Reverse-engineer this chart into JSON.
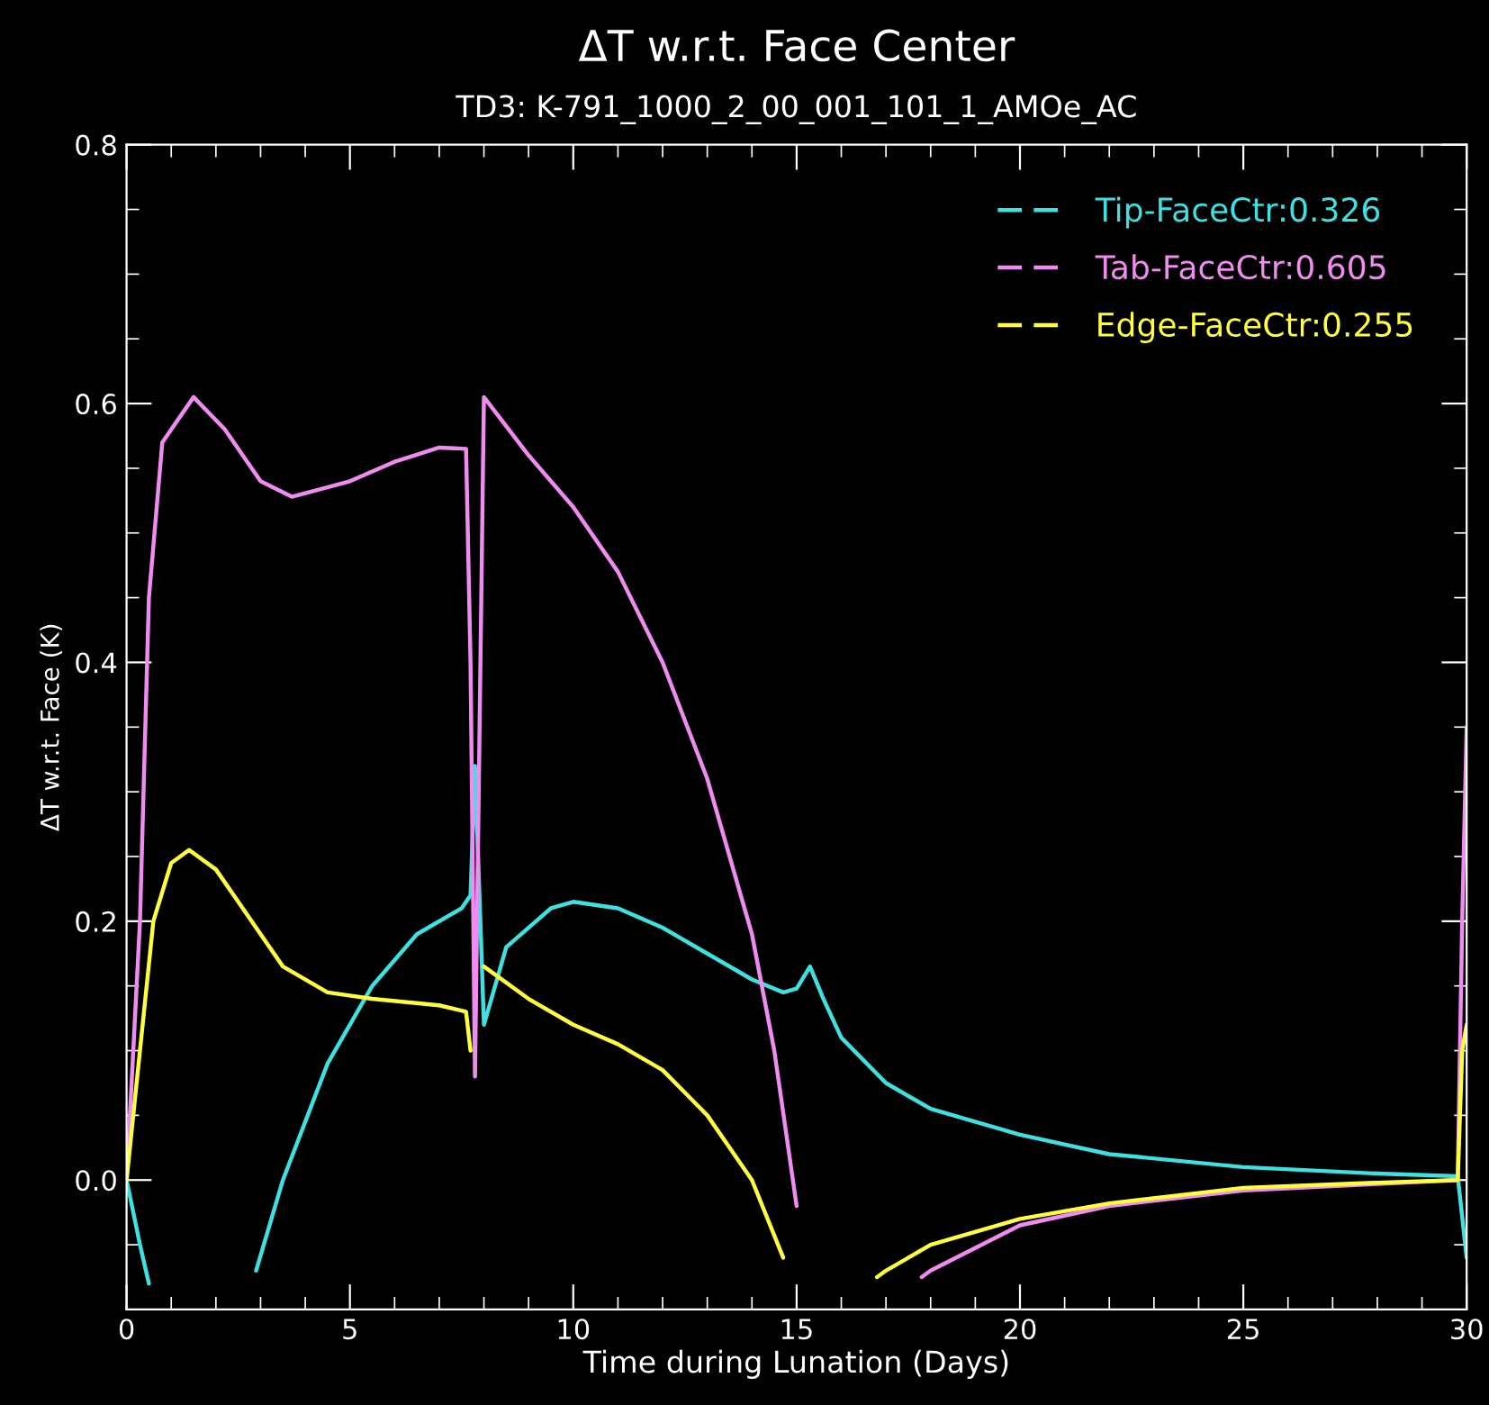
{
  "chart_data": {
    "type": "line",
    "title": "ΔT w.r.t. Face Center",
    "subtitle": "TD3: K-791_1000_2_00_001_101_1_AMOe_AC",
    "xlabel": "Time during Lunation (Days)",
    "ylabel": "ΔT w.r.t. Face (K)",
    "xlim": [
      0,
      30
    ],
    "ylim": [
      -0.1,
      0.8
    ],
    "xticks": [
      0,
      5,
      10,
      15,
      20,
      25,
      30
    ],
    "yticks": [
      {
        "value": 0.0,
        "label": "0.0"
      },
      {
        "value": 0.2,
        "label": "0.2"
      },
      {
        "value": 0.4,
        "label": "0.4"
      },
      {
        "value": 0.6,
        "label": "0.6"
      },
      {
        "value": 0.8,
        "label": "0.8"
      }
    ],
    "legend": "top right",
    "grid": false,
    "marker": "none",
    "line_style": "solid",
    "series": [
      {
        "name": "Tip-FaceCtr:0.326",
        "color": "#40e0e0",
        "x": [
          0,
          0.3,
          0.5,
          0.7,
          2.9,
          3.5,
          4.5,
          5.5,
          6.5,
          7.5,
          7.7,
          7.8,
          8.0,
          8.5,
          9.5,
          10,
          11,
          12,
          13,
          14,
          14.7,
          15.0,
          15.3,
          15.6,
          16,
          17,
          18,
          20,
          22,
          25,
          28,
          29.8,
          30
        ],
        "values": [
          0.0,
          -0.05,
          -0.08,
          null,
          -0.07,
          0.0,
          0.09,
          0.15,
          0.19,
          0.21,
          0.22,
          0.32,
          0.12,
          0.18,
          0.21,
          0.215,
          0.21,
          0.195,
          0.175,
          0.155,
          0.145,
          0.148,
          0.165,
          0.14,
          0.11,
          0.075,
          0.055,
          0.035,
          0.02,
          0.01,
          0.005,
          0.003,
          -0.06
        ]
      },
      {
        "name": "Tab-FaceCtr:0.605",
        "color": "#f08cf0",
        "x": [
          0,
          0.3,
          0.5,
          0.8,
          1.5,
          2.2,
          3,
          3.7,
          5,
          6,
          7,
          7.6,
          7.7,
          7.8,
          8.0,
          9,
          10,
          11,
          12,
          13,
          14,
          14.5,
          15,
          15.1,
          16,
          17.8,
          18,
          20,
          22,
          25,
          28,
          29.8,
          29.9,
          30
        ],
        "values": [
          0.0,
          0.2,
          0.45,
          0.57,
          0.605,
          0.58,
          0.54,
          0.528,
          0.54,
          0.555,
          0.566,
          0.565,
          0.4,
          0.08,
          0.605,
          0.56,
          0.52,
          0.47,
          0.4,
          0.31,
          0.19,
          0.1,
          -0.02,
          null,
          null,
          -0.075,
          -0.07,
          -0.035,
          -0.02,
          -0.008,
          -0.003,
          0.0,
          0.2,
          0.35
        ]
      },
      {
        "name": "Edge-FaceCtr:0.255",
        "color": "#ffff40",
        "x": [
          0,
          0.3,
          0.6,
          1.0,
          1.4,
          2,
          3,
          3.5,
          4.5,
          5.5,
          7,
          7.6,
          7.7,
          7.75,
          7.9,
          8.0,
          9,
          10,
          11,
          12,
          13,
          14,
          14.7,
          15,
          15.5,
          16.8,
          17,
          18,
          20,
          22,
          25,
          28,
          29.8,
          29.9,
          30
        ],
        "values": [
          0.0,
          0.1,
          0.2,
          0.245,
          0.255,
          0.24,
          0.19,
          0.165,
          0.145,
          0.14,
          0.135,
          0.13,
          0.1,
          null,
          null,
          0.165,
          0.14,
          0.12,
          0.105,
          0.085,
          0.05,
          0.0,
          -0.06,
          null,
          null,
          -0.075,
          -0.07,
          -0.05,
          -0.03,
          -0.018,
          -0.006,
          -0.002,
          0.0,
          0.1,
          0.12
        ]
      }
    ]
  }
}
